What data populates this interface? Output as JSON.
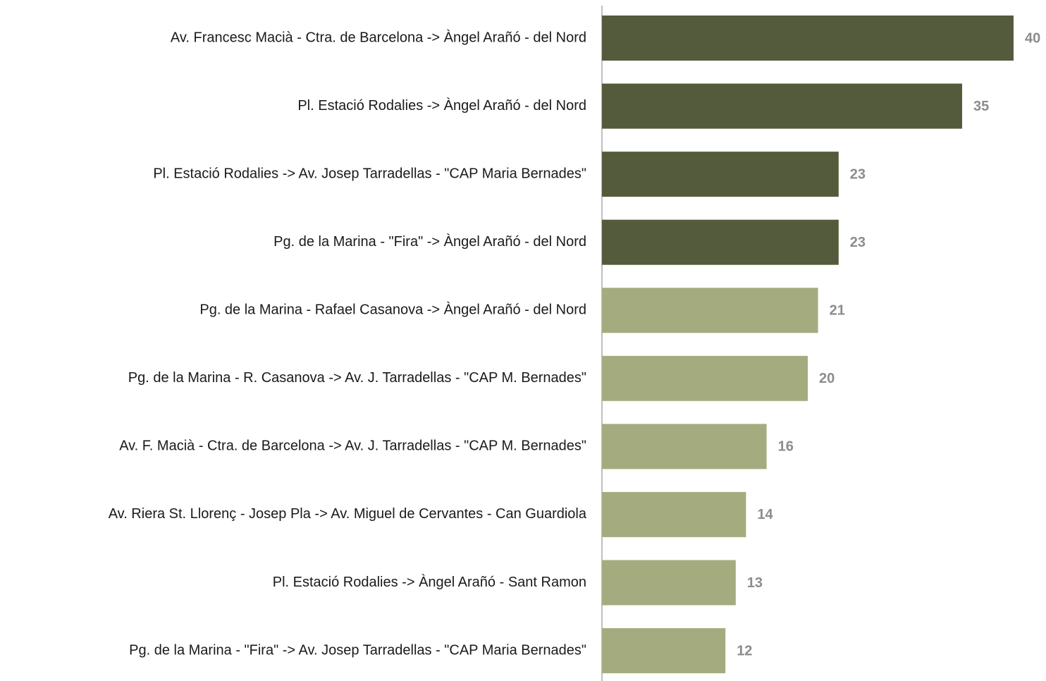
{
  "chart_data": {
    "type": "barh",
    "categories": [
      "Av. Francesc Macià - Ctra. de Barcelona -> Àngel Arañó - del Nord",
      "Pl. Estació Rodalies -> Àngel Arañó - del Nord",
      "Pl. Estació Rodalies -> Av. Josep Tarradellas - \"CAP Maria Bernades\"",
      "Pg. de la Marina - \"Fira\" -> Àngel Arañó - del Nord",
      "Pg. de la Marina - Rafael Casanova -> Àngel Arañó - del Nord",
      "Pg. de la Marina - R. Casanova -> Av. J. Tarradellas - \"CAP M. Bernades\"",
      "Av. F. Macià - Ctra. de Barcelona -> Av. J. Tarradellas - \"CAP M. Bernades\"",
      "Av. Riera St. Llorenç - Josep Pla -> Av. Miguel de Cervantes - Can Guardiola",
      "Pl. Estació Rodalies -> Àngel Arañó - Sant Ramon",
      "Pg. de la Marina - \"Fira\" -> Av. Josep Tarradellas - \"CAP Maria Bernades\""
    ],
    "values": [
      40,
      35,
      23,
      23,
      21,
      20,
      16,
      14,
      13,
      12
    ],
    "colors": [
      "#545b3c",
      "#545b3c",
      "#545b3c",
      "#545b3c",
      "#a4ac7f",
      "#a4ac7f",
      "#a4ac7f",
      "#a4ac7f",
      "#a4ac7f",
      "#a4ac7f"
    ],
    "xlim": [
      0,
      40
    ]
  }
}
